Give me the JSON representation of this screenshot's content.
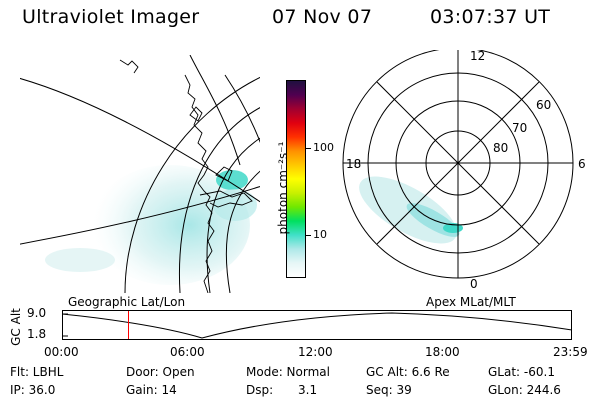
{
  "header": {
    "instrument": "Ultraviolet Imager",
    "date": "07 Nov 07",
    "time": "03:07:37 UT"
  },
  "colorbar": {
    "unit_label": "photon cm⁻²s⁻¹",
    "tick_100": "100",
    "tick_10": "10",
    "colors": [
      "#ffffff",
      "#e6f6f6",
      "#aee8e8",
      "#40e0c8",
      "#00e060",
      "#70e800",
      "#c8f000",
      "#ffff00",
      "#ffc800",
      "#ff9000",
      "#ff3000",
      "#e00010",
      "#a00030",
      "#500050",
      "#201040"
    ]
  },
  "geo_panel": {
    "caption": "Geographic Lat/Lon"
  },
  "polar_panel": {
    "caption": "Apex MLat/MLT",
    "mlt_12": "12",
    "mlt_18": "18",
    "mlt_6": "6",
    "mlt_0": "0",
    "lat_60": "60",
    "lat_70": "70",
    "lat_80": "80"
  },
  "altitude_plot": {
    "ylabel": "GC Alt",
    "ytick_top": "9.0",
    "ytick_bottom": "1.8",
    "xticks": [
      "00:00",
      "06:00",
      "12:00",
      "18:00",
      "23:59"
    ],
    "current_time_marker_hours": 3.13
  },
  "info": {
    "filter": "Flt: LBHL",
    "door": "Door: Open",
    "mode": "Mode: Normal",
    "gc_alt": "GC Alt: 6.6 Re",
    "glat": "GLat: -60.1",
    "ip": "IP: 36.0",
    "gain": "Gain: 14",
    "dsp_label": "Dsp:",
    "dsp_value": "3.1",
    "seq": "Seq: 39",
    "glon": "GLon: 244.6"
  },
  "colors": {
    "marker": "#ff0000",
    "aurora_light": "#d8f2f2",
    "aurora_mid": "#a6e6e6",
    "aurora_strong": "#3fd8c8"
  }
}
